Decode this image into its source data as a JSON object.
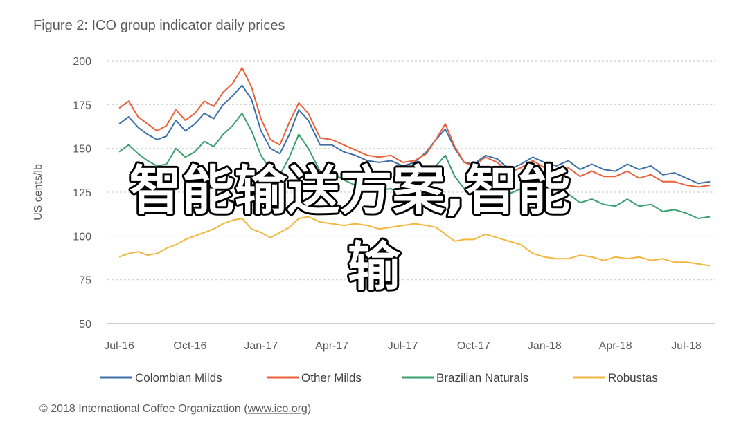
{
  "chart_data": {
    "type": "line",
    "title": "Figure 2: ICO group indicator daily prices",
    "ylabel": "US cents/lb",
    "xlabel": "",
    "ylim": [
      50,
      200
    ],
    "y_ticks": [
      "200",
      "175",
      "150",
      "125",
      "100",
      "75",
      "50"
    ],
    "y_tick_values": [
      200,
      175,
      150,
      125,
      100,
      75,
      50
    ],
    "x_ticks": [
      "Jul-16",
      "Oct-16",
      "Jan-17",
      "Apr-17",
      "Jul-17",
      "Oct-17",
      "Jan-18",
      "Apr-18",
      "Jul-18"
    ],
    "x_tick_values": [
      0,
      3,
      6,
      9,
      12,
      15,
      18,
      21,
      24
    ],
    "xlim": [
      -0.5,
      25.2
    ],
    "grid": true,
    "legend_placement": "bottom",
    "series": [
      {
        "name": "Colombian Milds",
        "color": "#3d6fa8",
        "x": [
          0,
          0.4,
          0.8,
          1.2,
          1.6,
          2.0,
          2.4,
          2.8,
          3.2,
          3.6,
          4.0,
          4.4,
          4.8,
          5.2,
          5.6,
          6.0,
          6.4,
          6.8,
          7.2,
          7.6,
          8.0,
          8.5,
          9.0,
          9.5,
          10.0,
          10.5,
          11.0,
          11.5,
          12.0,
          12.5,
          13.0,
          13.4,
          13.8,
          14.2,
          14.6,
          15.0,
          15.5,
          16.0,
          16.5,
          17.0,
          17.5,
          18.0,
          18.5,
          19.0,
          19.5,
          20.0,
          20.5,
          21.0,
          21.5,
          22.0,
          22.5,
          23.0,
          23.5,
          24.0,
          24.5,
          25.0
        ],
        "y": [
          164,
          168,
          162,
          158,
          155,
          157,
          166,
          160,
          164,
          170,
          167,
          175,
          180,
          186,
          178,
          160,
          150,
          147,
          158,
          172,
          166,
          152,
          152,
          148,
          146,
          143,
          142,
          143,
          140,
          142,
          148,
          155,
          161,
          150,
          142,
          141,
          146,
          144,
          138,
          141,
          145,
          142,
          140,
          143,
          138,
          141,
          138,
          137,
          141,
          138,
          140,
          135,
          136,
          133,
          130,
          131
        ]
      },
      {
        "name": "Other Milds",
        "color": "#e8613a",
        "x": [
          0,
          0.4,
          0.8,
          1.2,
          1.6,
          2.0,
          2.4,
          2.8,
          3.2,
          3.6,
          4.0,
          4.4,
          4.8,
          5.2,
          5.6,
          6.0,
          6.4,
          6.8,
          7.2,
          7.6,
          8.0,
          8.5,
          9.0,
          9.5,
          10.0,
          10.5,
          11.0,
          11.5,
          12.0,
          12.5,
          13.0,
          13.4,
          13.8,
          14.2,
          14.6,
          15.0,
          15.5,
          16.0,
          16.5,
          17.0,
          17.5,
          18.0,
          18.5,
          19.0,
          19.5,
          20.0,
          20.5,
          21.0,
          21.5,
          22.0,
          22.5,
          23.0,
          23.5,
          24.0,
          24.5,
          25.0
        ],
        "y": [
          173,
          177,
          168,
          164,
          160,
          163,
          172,
          166,
          170,
          177,
          174,
          182,
          187,
          196,
          185,
          167,
          155,
          152,
          165,
          176,
          170,
          156,
          155,
          152,
          149,
          146,
          145,
          146,
          142,
          143,
          147,
          155,
          164,
          151,
          142,
          140,
          145,
          142,
          136,
          139,
          143,
          139,
          136,
          139,
          134,
          137,
          134,
          134,
          137,
          133,
          135,
          131,
          131,
          129,
          128,
          129
        ]
      },
      {
        "name": "Brazilian Naturals",
        "color": "#3a9f6e",
        "x": [
          0,
          0.4,
          0.8,
          1.2,
          1.6,
          2.0,
          2.4,
          2.8,
          3.2,
          3.6,
          4.0,
          4.4,
          4.8,
          5.2,
          5.6,
          6.0,
          6.4,
          6.8,
          7.2,
          7.6,
          8.0,
          8.5,
          9.0,
          9.5,
          10.0,
          10.5,
          11.0,
          11.5,
          12.0,
          12.5,
          13.0,
          13.4,
          13.8,
          14.2,
          14.6,
          15.0,
          15.5,
          16.0,
          16.5,
          17.0,
          17.5,
          18.0,
          18.5,
          19.0,
          19.5,
          20.0,
          20.5,
          21.0,
          21.5,
          22.0,
          22.5,
          23.0,
          23.5,
          24.0,
          24.5,
          25.0
        ],
        "y": [
          148,
          152,
          147,
          143,
          140,
          141,
          150,
          145,
          148,
          154,
          151,
          158,
          163,
          170,
          160,
          146,
          138,
          135,
          145,
          158,
          150,
          137,
          136,
          132,
          129,
          127,
          126,
          127,
          123,
          125,
          133,
          140,
          146,
          134,
          127,
          126,
          131,
          128,
          124,
          127,
          130,
          126,
          122,
          124,
          119,
          121,
          118,
          117,
          121,
          117,
          118,
          114,
          115,
          113,
          110,
          111
        ]
      },
      {
        "name": "Robustas",
        "color": "#f4b73d",
        "x": [
          0,
          0.4,
          0.8,
          1.2,
          1.6,
          2.0,
          2.4,
          2.8,
          3.2,
          3.6,
          4.0,
          4.4,
          4.8,
          5.2,
          5.6,
          6.0,
          6.4,
          6.8,
          7.2,
          7.6,
          8.0,
          8.5,
          9.0,
          9.5,
          10.0,
          10.5,
          11.0,
          11.5,
          12.0,
          12.5,
          13.0,
          13.4,
          13.8,
          14.2,
          14.6,
          15.0,
          15.5,
          16.0,
          16.5,
          17.0,
          17.5,
          18.0,
          18.5,
          19.0,
          19.5,
          20.0,
          20.5,
          21.0,
          21.5,
          22.0,
          22.5,
          23.0,
          23.5,
          24.0,
          24.5,
          25.0
        ],
        "y": [
          88,
          90,
          91,
          89,
          90,
          93,
          95,
          98,
          100,
          102,
          104,
          107,
          109,
          110,
          104,
          102,
          99,
          102,
          105,
          110,
          111,
          108,
          107,
          106,
          107,
          106,
          104,
          105,
          106,
          107,
          106,
          105,
          101,
          97,
          98,
          98,
          101,
          99,
          97,
          95,
          90,
          88,
          87,
          87,
          89,
          88,
          86,
          88,
          87,
          88,
          86,
          87,
          85,
          85,
          84,
          83
        ]
      }
    ]
  },
  "footer": {
    "prefix": "© 2018 International Coffee Organization (",
    "link": "www.ico.org",
    "suffix": ")"
  },
  "overlay": {
    "line1": "智能输送方案,智能",
    "line2": "输"
  }
}
